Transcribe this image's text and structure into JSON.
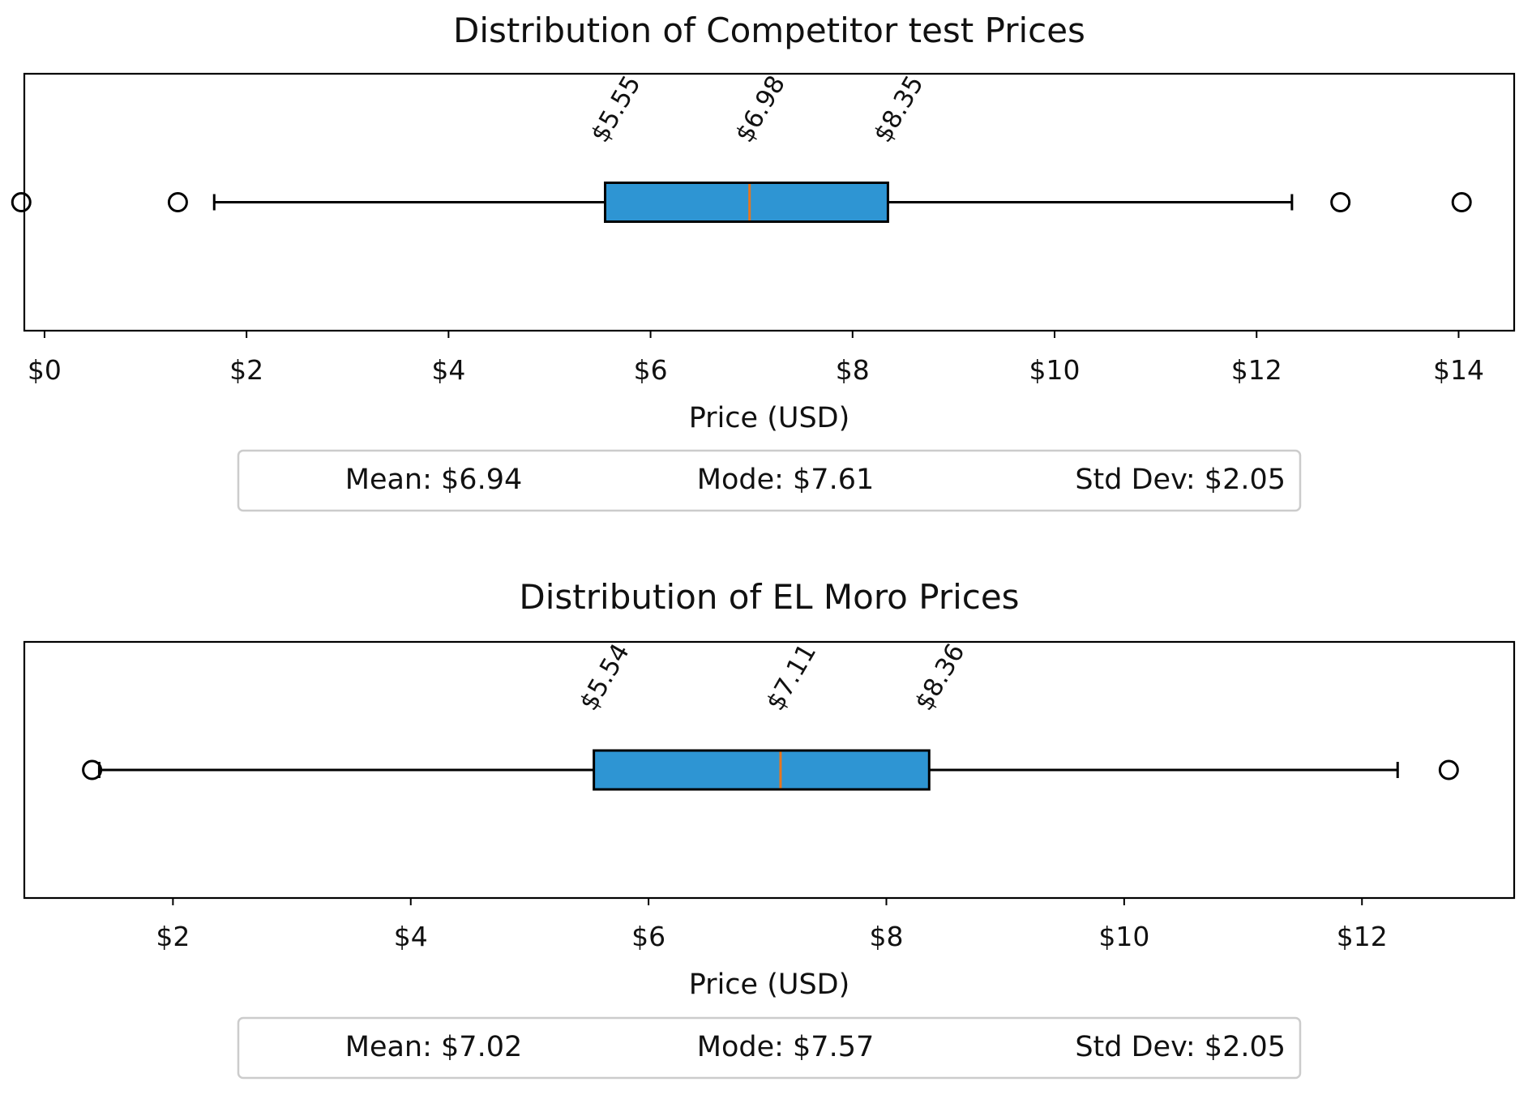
{
  "chart_data": [
    {
      "type": "boxplot",
      "orientation": "horizontal",
      "title": "Distribution of Competitor test Prices",
      "xlabel": "Price (USD)",
      "ylabel": "",
      "xlim": [
        -0.2,
        14.55
      ],
      "xticks": [
        0,
        2,
        4,
        6,
        8,
        10,
        12,
        14
      ],
      "tick_labels": [
        "$0",
        "$2",
        "$4",
        "$6",
        "$8",
        "$10",
        "$12",
        "$14"
      ],
      "grid": false,
      "box": {
        "whisker_low": 1.68,
        "q1": 5.55,
        "median": 6.98,
        "q3": 8.35,
        "whisker_high": 12.35
      },
      "outliers": [
        -0.23,
        1.32,
        12.83,
        14.03
      ],
      "annotations": [
        "$5.55",
        "$6.98",
        "$8.35"
      ],
      "stats": {
        "mean": "Mean: $6.94",
        "mode": "Mode: $7.61",
        "std": "Std Dev: $2.05"
      },
      "colors": {
        "box": "#2e95d3",
        "median": "#e8761e",
        "edge": "#000000"
      }
    },
    {
      "type": "boxplot",
      "orientation": "horizontal",
      "title": "Distribution of EL Moro Prices",
      "xlabel": "Price (USD)",
      "ylabel": "",
      "xlim": [
        0.75,
        13.28
      ],
      "xticks": [
        2,
        4,
        6,
        8,
        10,
        12
      ],
      "tick_labels": [
        "$2",
        "$4",
        "$6",
        "$8",
        "$10",
        "$12"
      ],
      "grid": false,
      "box": {
        "whisker_low": 1.38,
        "q1": 5.54,
        "median": 7.11,
        "q3": 8.36,
        "whisker_high": 12.3
      },
      "outliers": [
        1.32,
        12.73
      ],
      "annotations": [
        "$5.54",
        "$7.11",
        "$8.36"
      ],
      "stats": {
        "mean": "Mean: $7.02",
        "mode": "Mode: $7.57",
        "std": "Std Dev: $2.05"
      },
      "colors": {
        "box": "#2e95d3",
        "median": "#e8761e",
        "edge": "#000000"
      }
    }
  ]
}
